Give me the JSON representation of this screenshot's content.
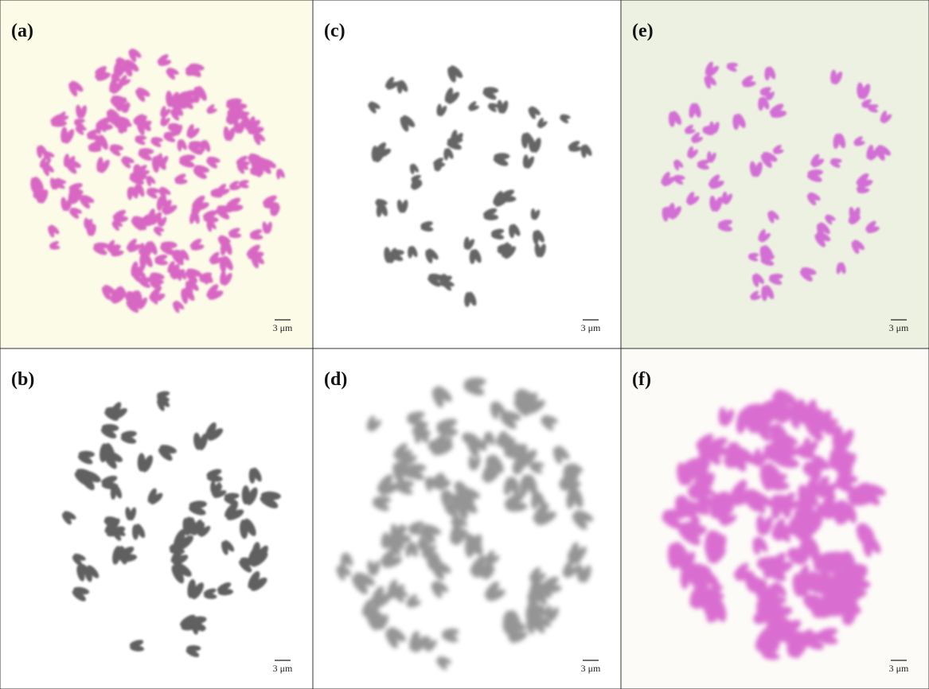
{
  "panels": [
    {
      "label": "(a)",
      "scale_label": "3 μm"
    },
    {
      "label": "(b)",
      "scale_label": "3 μm"
    },
    {
      "label": "(c)",
      "scale_label": "3 μm"
    },
    {
      "label": "(d)",
      "scale_label": "3 μm"
    },
    {
      "label": "(e)",
      "scale_label": "3 μm"
    },
    {
      "label": "(f)",
      "scale_label": "3 μm"
    }
  ]
}
